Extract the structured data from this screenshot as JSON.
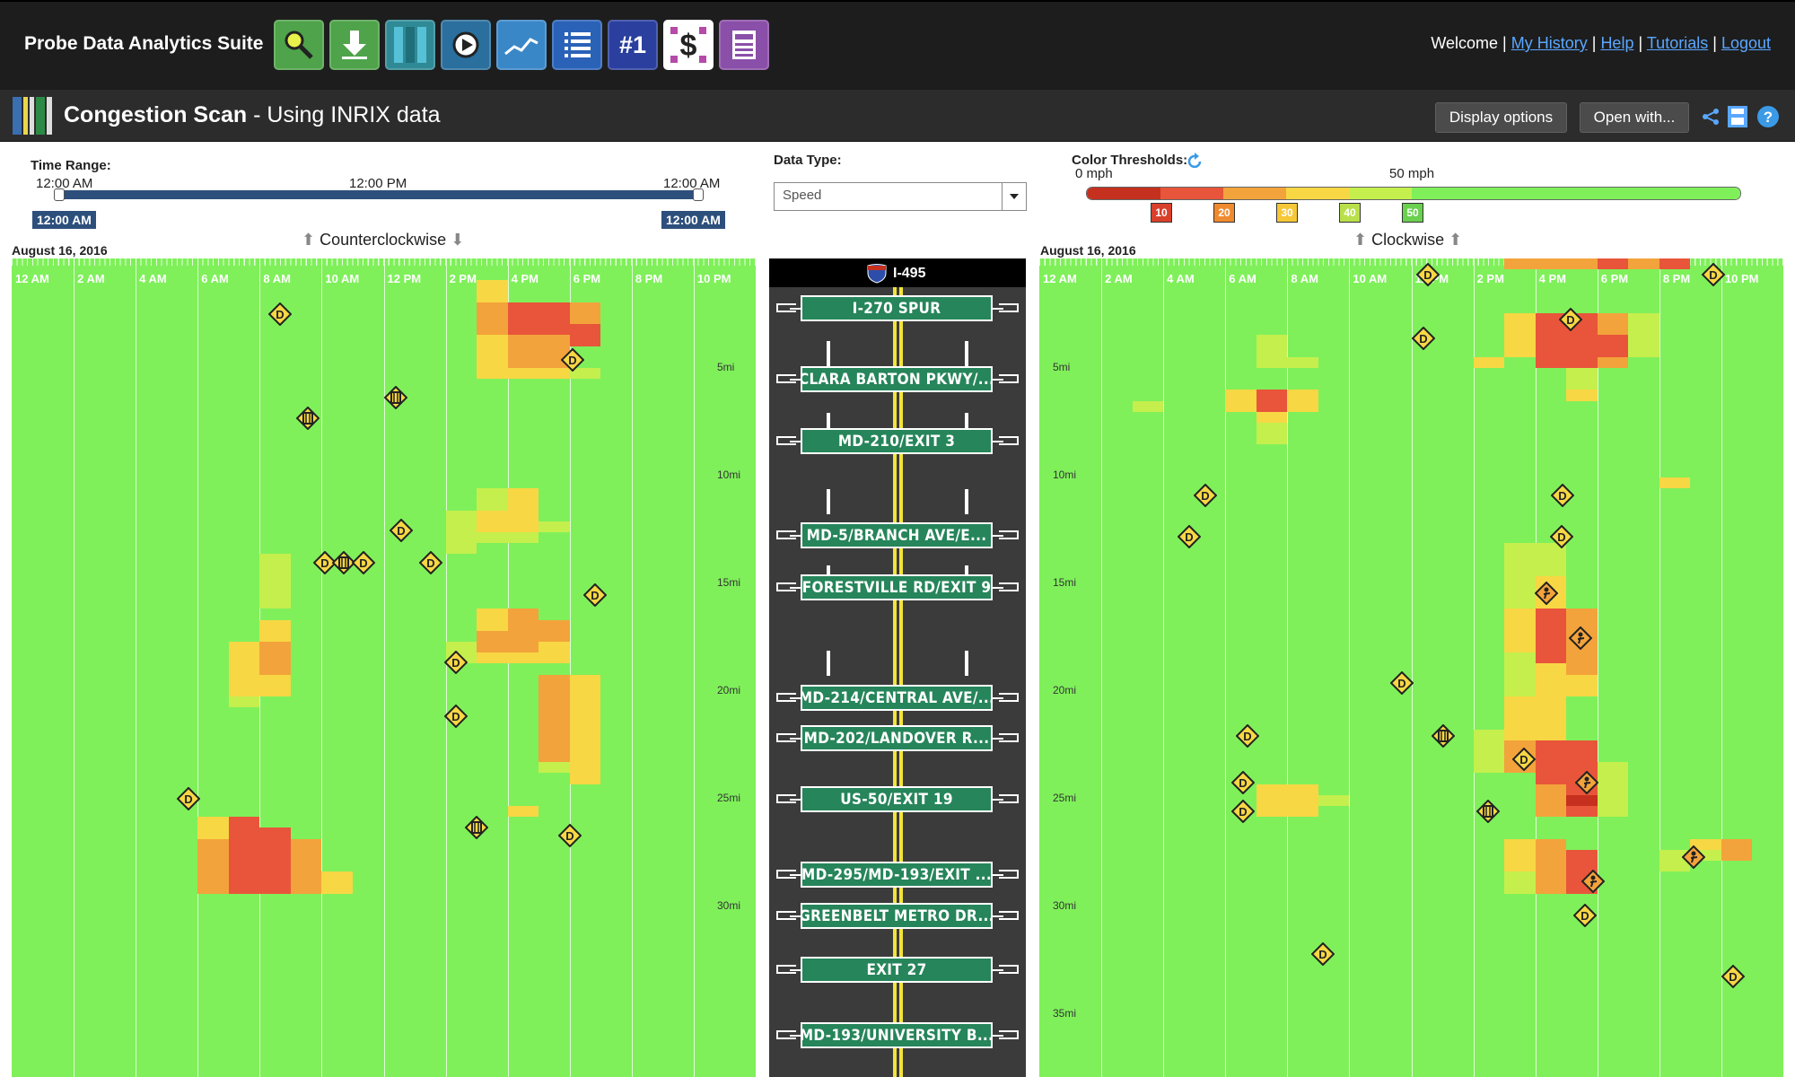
{
  "app": {
    "title": "Probe Data Analytics Suite",
    "welcome": "Welcome |",
    "links": [
      "My History",
      "Help",
      "Tutorials",
      "Logout"
    ],
    "separator": "|"
  },
  "toolbar": {
    "tools": [
      {
        "icon": "magnifier-icon",
        "color": "#4fa34a"
      },
      {
        "icon": "download-icon",
        "color": "#4fa34a"
      },
      {
        "icon": "congestion-scan-icon",
        "color": "#2f8a96"
      },
      {
        "icon": "map-play-icon",
        "color": "#2a6f9e"
      },
      {
        "icon": "line-chart-icon",
        "color": "#3a87c8"
      },
      {
        "icon": "list-icon",
        "color": "#2a62b8"
      },
      {
        "icon": "rank-icon",
        "color": "#2a3f9e",
        "label": "#1"
      },
      {
        "icon": "dollar-icon",
        "color": "#b54aa8"
      },
      {
        "icon": "calculator-icon",
        "color": "#8a4fa8"
      }
    ]
  },
  "header": {
    "title_bold": "Congestion Scan",
    "title_rest": " - Using INRIX data",
    "display_options": "Display options",
    "open_with": "Open with..."
  },
  "controls": {
    "time_range_label": "Time Range:",
    "time_left": "12:00 AM",
    "time_mid": "12:00 PM",
    "time_right": "12:00 AM",
    "handle_left": "12:00 AM",
    "handle_right": "12:00 AM",
    "data_type_label": "Data Type:",
    "data_type_value": "Speed",
    "color_thresholds_label": "Color Thresholds:",
    "zero_mph": "0 mph",
    "fifty_mph": "50 mph",
    "thresholds": [
      "10",
      "20",
      "30",
      "40",
      "50"
    ],
    "threshold_colors": [
      "#d9402b",
      "#f08a2e",
      "#f6c737",
      "#b9e04a",
      "#6ad04f"
    ]
  },
  "left_panel": {
    "date": "August 16, 2016",
    "direction": "Counterclockwise",
    "time_ticks": [
      "12 AM",
      "2 AM",
      "4 AM",
      "6 AM",
      "8 AM",
      "10 AM",
      "12 PM",
      "2 PM",
      "4 PM",
      "6 PM",
      "8 PM",
      "10 PM"
    ],
    "miles": [
      "5mi",
      "10mi",
      "15mi",
      "20mi",
      "25mi",
      "30mi"
    ]
  },
  "right_panel": {
    "date": "August 16, 2016",
    "direction": "Clockwise",
    "time_ticks": [
      "12 AM",
      "2 AM",
      "4 AM",
      "6 AM",
      "8 AM",
      "10 AM",
      "12 PM",
      "2 PM",
      "4 PM",
      "6 PM",
      "8 PM",
      "10 PM"
    ],
    "miles": [
      "5mi",
      "10mi",
      "15mi",
      "20mi",
      "25mi",
      "30mi",
      "35mi"
    ]
  },
  "road": {
    "shield": "I-495",
    "exits": [
      "I-270 SPUR",
      "CLARA BARTON PKWY/...",
      "MD-210/EXIT 3",
      "MD-5/BRANCH AVE/E...",
      "FORESTVILLE RD/EXIT 9",
      "MD-214/CENTRAL AVE/...",
      "MD-202/LANDOVER R...",
      "US-50/EXIT 19",
      "MD-295/MD-193/EXIT ...",
      "GREENBELT METRO DR...",
      "EXIT 27",
      "MD-193/UNIVERSITY B..."
    ]
  },
  "colors": {
    "free_flow": "#7ff05a",
    "light": "#c5ef4d",
    "moderate": "#f7d744",
    "slow": "#f3a33b",
    "heavy": "#e8553a",
    "severe": "#c6301f"
  }
}
